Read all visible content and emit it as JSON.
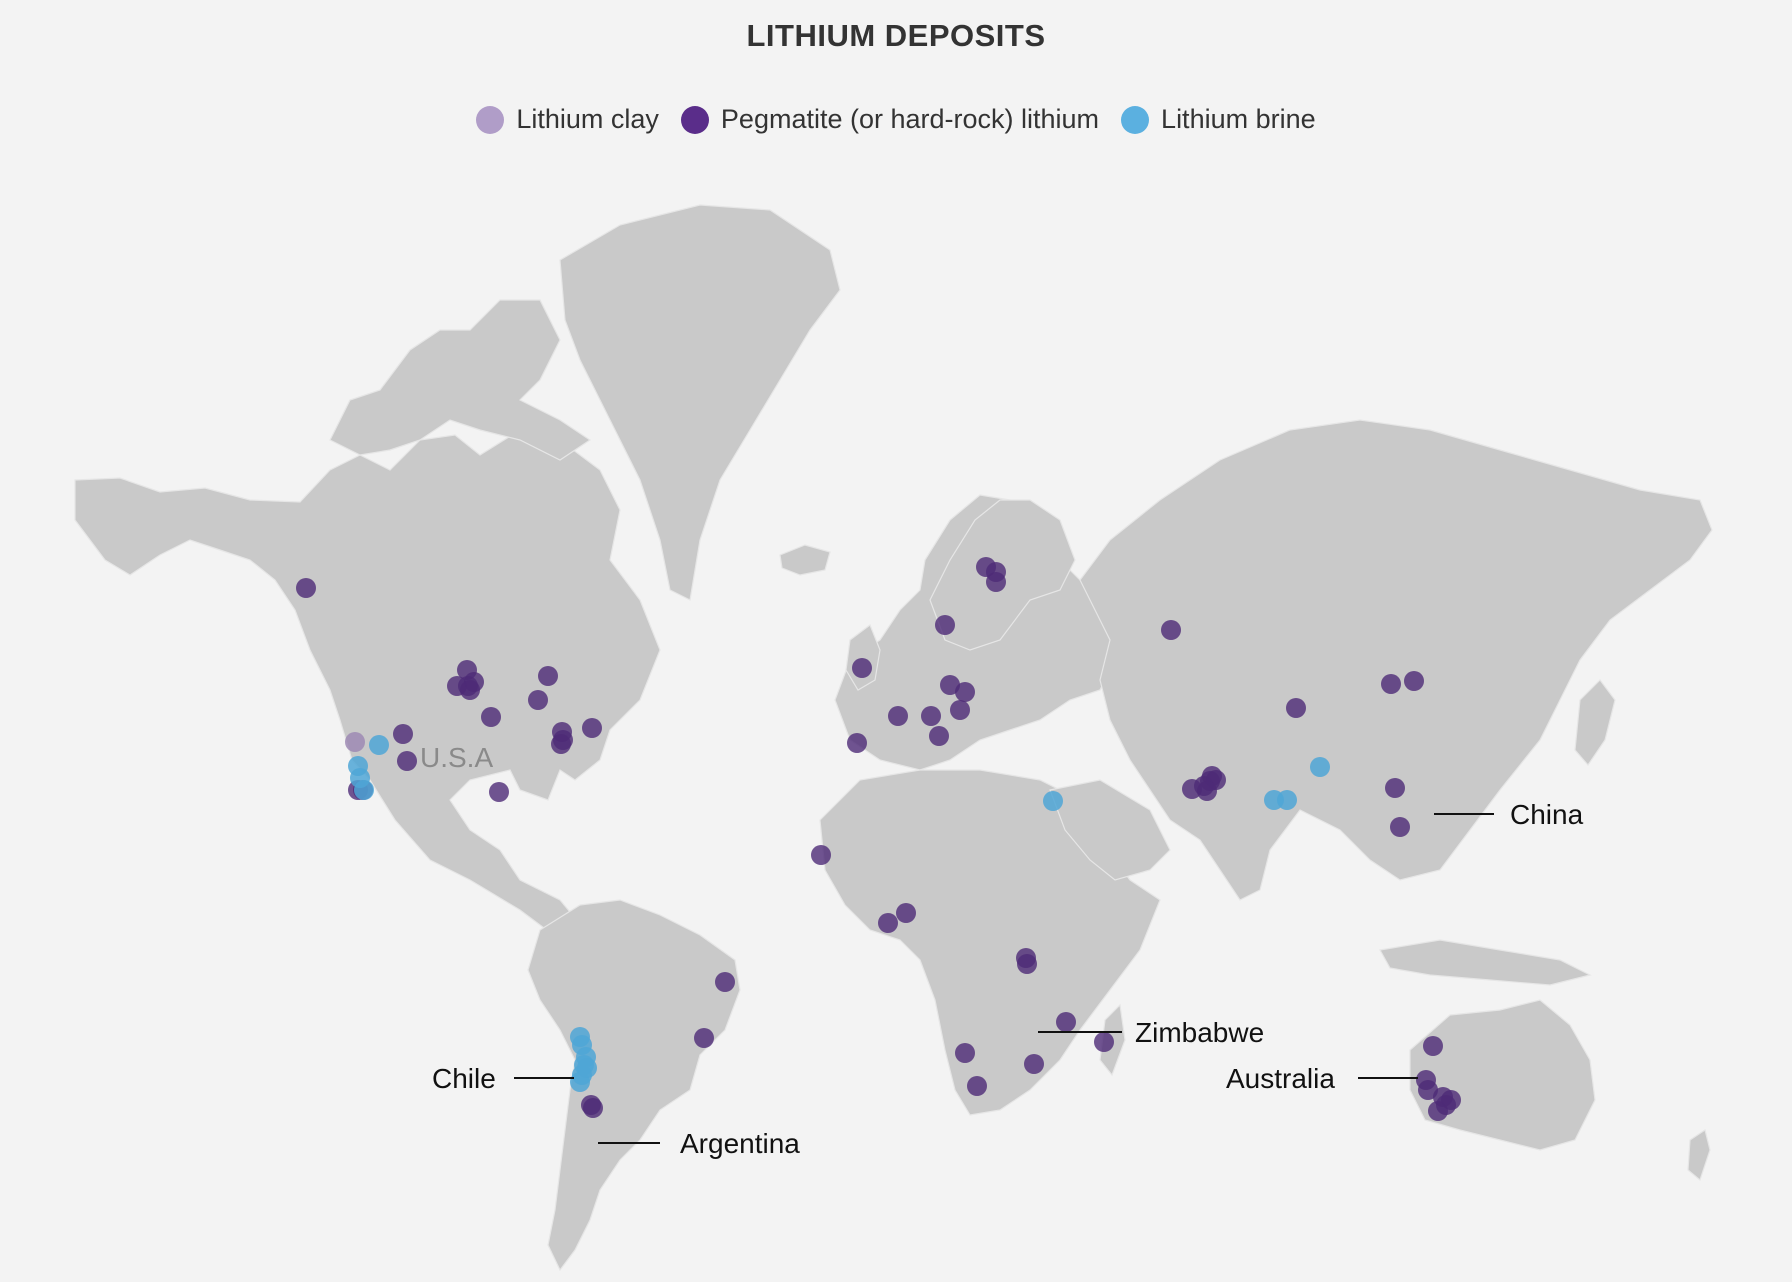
{
  "title": "LITHIUM DEPOSITS",
  "legend": [
    {
      "label": "Lithium clay",
      "color": "#b09dc8"
    },
    {
      "label": "Pegmatite (or hard-rock) lithium",
      "color": "#5a2d8a"
    },
    {
      "label": "Lithium brine",
      "color": "#5bb0e0"
    }
  ],
  "map_labels": {
    "usa": "U.S.A",
    "china": "China",
    "zimbabwe": "Zimbabwe",
    "australia": "Australia",
    "chile": "Chile",
    "argentina": "Argentina"
  },
  "dot_colors": {
    "clay": "#9d89b4",
    "pegmatite": "#4d2a77",
    "brine": "#4fa6d6"
  }
}
